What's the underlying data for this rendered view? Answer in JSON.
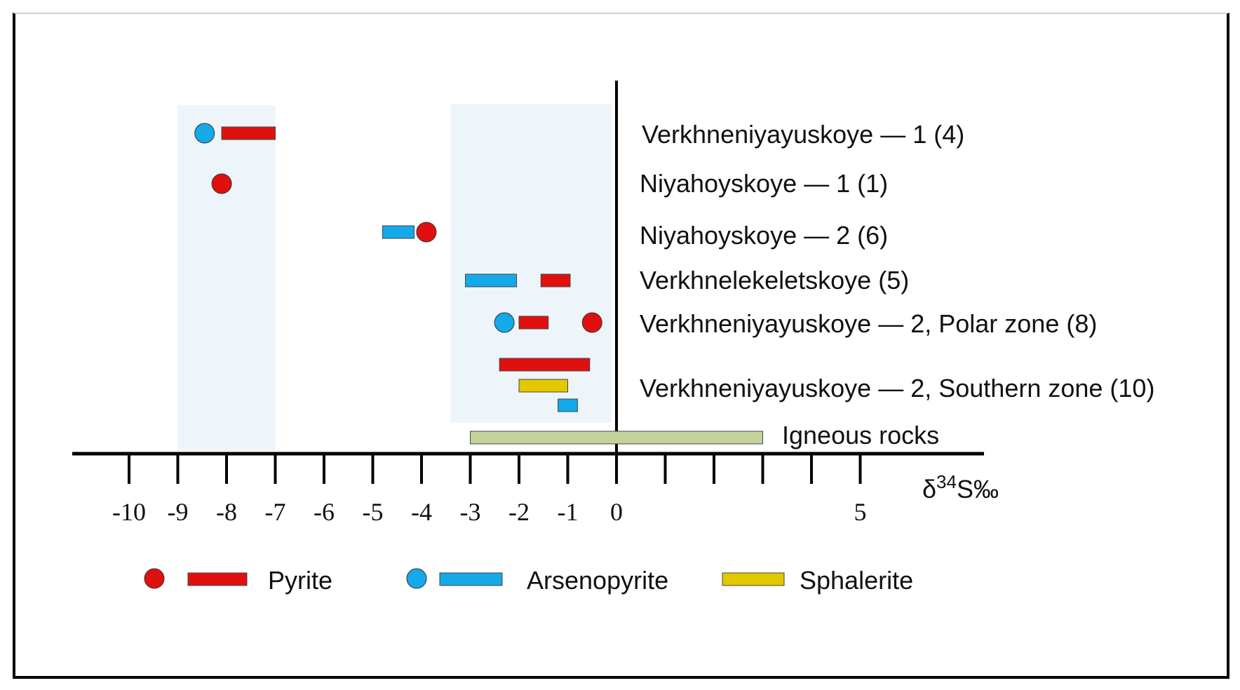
{
  "chart_data": {
    "type": "range-plot",
    "xlabel": "δ34S‰",
    "xlim": [
      -11.2,
      7.7
    ],
    "ticks": [
      -10,
      -9,
      -8,
      -7,
      -6,
      -5,
      -4,
      -3,
      -2,
      -1,
      0,
      1,
      2,
      3,
      4,
      5
    ],
    "tick_labels": [
      {
        "v": -10,
        "text": "-10"
      },
      {
        "v": -9,
        "text": "-9"
      },
      {
        "v": -8,
        "text": "-8"
      },
      {
        "v": -7,
        "text": "-7"
      },
      {
        "v": -6,
        "text": "-6"
      },
      {
        "v": -5,
        "text": "-5"
      },
      {
        "v": -4,
        "text": "-4"
      },
      {
        "v": -3,
        "text": "-3"
      },
      {
        "v": -2,
        "text": "-2"
      },
      {
        "v": -1,
        "text": "-1"
      },
      {
        "v": 0,
        "text": "0"
      },
      {
        "v": 5,
        "text": "5"
      }
    ],
    "shaded_ranges": [
      [
        -9,
        -7
      ],
      [
        -3.4,
        -0.1
      ]
    ],
    "deposits": [
      {
        "label": "Verkhneniyayuskoye — 1 (4)",
        "marks": [
          {
            "mineral": "arsenopyrite",
            "kind": "point",
            "value": -8.45
          },
          {
            "mineral": "pyrite",
            "kind": "range",
            "from": -8.1,
            "to": -7.0
          }
        ]
      },
      {
        "label": "Niyahoyskoye  — 1 (1)",
        "marks": [
          {
            "mineral": "pyrite",
            "kind": "point",
            "value": -8.1
          }
        ]
      },
      {
        "label": "Niyahoyskoye — 2 (6)",
        "marks": [
          {
            "mineral": "arsenopyrite",
            "kind": "range",
            "from": -4.8,
            "to": -4.15
          },
          {
            "mineral": "pyrite",
            "kind": "point",
            "value": -3.9
          }
        ]
      },
      {
        "label": "Verkhnelekeletskoye (5)",
        "marks": [
          {
            "mineral": "arsenopyrite",
            "kind": "range",
            "from": -3.1,
            "to": -2.05
          },
          {
            "mineral": "pyrite",
            "kind": "range",
            "from": -1.55,
            "to": -0.95
          }
        ]
      },
      {
        "label": "Verkhneniyayuskoye — 2, Polar zone (8)",
        "marks": [
          {
            "mineral": "arsenopyrite",
            "kind": "point",
            "value": -2.3
          },
          {
            "mineral": "pyrite",
            "kind": "range",
            "from": -2.0,
            "to": -1.4
          },
          {
            "mineral": "pyrite",
            "kind": "point",
            "value": -0.5
          }
        ]
      },
      {
        "label": "Verkhneniyayuskoye — 2, Southern zone (10)",
        "marks": [
          {
            "mineral": "pyrite",
            "kind": "range",
            "from": -2.4,
            "to": -0.55
          },
          {
            "mineral": "sphalerite",
            "kind": "range",
            "from": -2.0,
            "to": -1.0
          },
          {
            "mineral": "arsenopyrite",
            "kind": "range",
            "from": -1.2,
            "to": -0.8
          }
        ]
      },
      {
        "label": "Igneous rocks",
        "marks": [
          {
            "mineral": "igneous",
            "kind": "range",
            "from": -3.0,
            "to": 3.0
          }
        ]
      }
    ],
    "legend": [
      {
        "label": "Pyrite",
        "mineral": "pyrite",
        "point": true
      },
      {
        "label": "Arsenopyrite",
        "mineral": "arsenopyrite",
        "point": true
      },
      {
        "label": "Sphalerite",
        "mineral": "sphalerite",
        "point": false
      }
    ],
    "colors": {
      "pyrite": "#e0100f",
      "arsenopyrite": "#14a9e8",
      "sphalerite": "#e3c800",
      "igneous": "#c3d39a",
      "shade": "#eef5fa"
    }
  }
}
